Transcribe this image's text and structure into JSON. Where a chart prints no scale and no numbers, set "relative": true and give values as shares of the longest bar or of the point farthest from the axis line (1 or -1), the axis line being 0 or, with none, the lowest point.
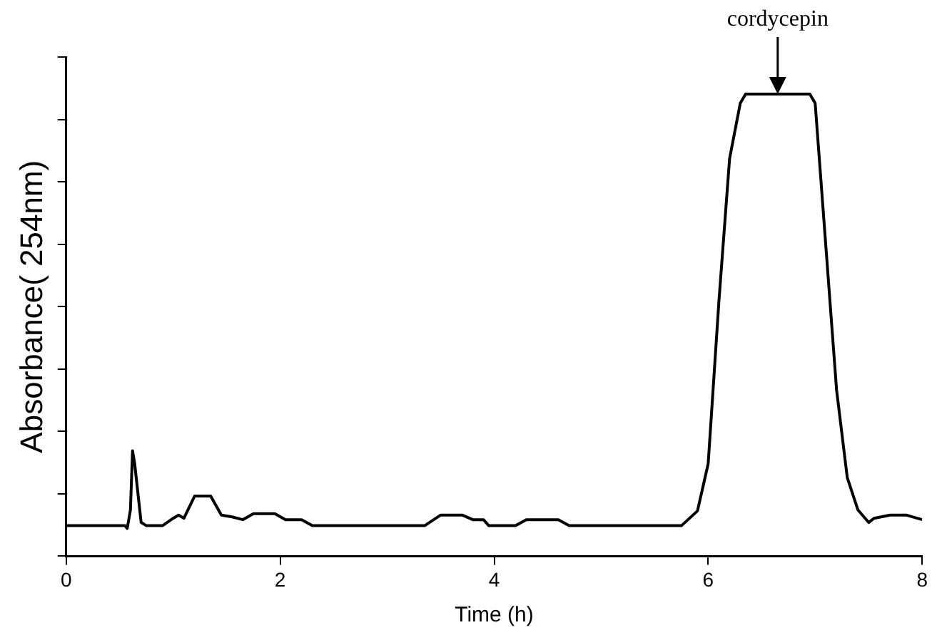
{
  "chart_data": {
    "type": "line",
    "xlabel": "Time (h)",
    "ylabel": "Absorbance( 254nm)",
    "relative": true,
    "xlim": [
      0,
      8
    ],
    "xticks": [
      0,
      2,
      4,
      6,
      8
    ],
    "grid": false,
    "legend": false,
    "marker": "none",
    "line_style": "solid",
    "annotations": [
      {
        "text": "cordycepin",
        "x": 6.65,
        "y": 1
      }
    ],
    "series": [
      {
        "color": "#000000",
        "x": [
          0,
          0.55,
          0.57,
          0.6,
          0.62,
          0.64,
          0.7,
          0.75,
          0.9,
          1.0,
          1.05,
          1.1,
          1.2,
          1.35,
          1.45,
          1.55,
          1.65,
          1.75,
          1.95,
          2.05,
          2.2,
          2.3,
          3.35,
          3.5,
          3.7,
          3.8,
          3.9,
          3.95,
          4.2,
          4.3,
          4.6,
          4.7,
          5.75,
          5.9,
          6.0,
          6.1,
          6.2,
          6.3,
          6.35,
          6.95,
          7.0,
          7.1,
          7.2,
          7.3,
          7.4,
          7.5,
          7.55,
          7.7,
          7.85,
          8.0
        ],
        "values": [
          0.066,
          0.066,
          0.06,
          0.1,
          0.228,
          0.2,
          0.073,
          0.066,
          0.066,
          0.082,
          0.089,
          0.082,
          0.13,
          0.13,
          0.089,
          0.085,
          0.079,
          0.092,
          0.092,
          0.079,
          0.079,
          0.066,
          0.066,
          0.089,
          0.089,
          0.079,
          0.079,
          0.066,
          0.066,
          0.079,
          0.079,
          0.066,
          0.066,
          0.098,
          0.2,
          0.55,
          0.86,
          0.98,
          1,
          1,
          0.98,
          0.67,
          0.36,
          0.17,
          0.1,
          0.073,
          0.082,
          0.089,
          0.089,
          0.079
        ]
      }
    ]
  }
}
